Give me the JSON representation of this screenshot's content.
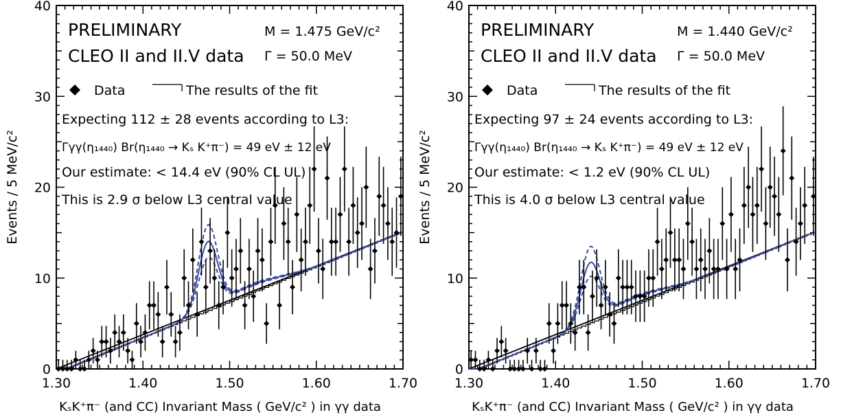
{
  "colors": {
    "data": "#000000",
    "fit": "#3a4a9c",
    "axis": "#000000",
    "background": "#ffffff"
  },
  "chart_data": [
    {
      "type": "scatter",
      "title": "",
      "xlabel": "KₛK⁺π⁻ (and CC) Invariant Mass ( GeV/c² ) in γγ data",
      "ylabel": "Events / 5 MeV/c²",
      "xlim": [
        1.3,
        1.7
      ],
      "ylim": [
        0,
        40
      ],
      "x_ticks": [
        "1.30",
        "1.40",
        "1.50",
        "1.60",
        "1.70"
      ],
      "y_ticks": [
        "0",
        "10",
        "20",
        "30",
        "40"
      ],
      "annotations": {
        "preliminary": "PRELIMINARY",
        "dataset": "CLEO II and II.V data",
        "mass": "M = 1.475 GeV/c²",
        "width": "Γ =  50.0 MeV",
        "legend_data": "Data",
        "legend_fit": "The results of the fit",
        "expecting": "Expecting 112 ± 28 events according to L3:",
        "width_relation": "Γγγ(η₁₄₄₀) Br(η₁₄₄₀ → Kₛ K⁺π⁻) = 49 eV ± 12 eV",
        "estimate": "Our estimate:  <  14.4 eV (90% CL UL)",
        "significance": "This is 2.9 σ below L3 central value"
      },
      "legend": [
        "Data",
        "The results of the fit"
      ],
      "fit": {
        "peak_mass": 1.475,
        "peak_height": 13.7,
        "peak_height_upper": 15.5,
        "peak_height_lower": 12.0
      },
      "series": [
        {
          "name": "Data",
          "x": [
            1.3025,
            1.3075,
            1.3125,
            1.3175,
            1.3225,
            1.3275,
            1.3325,
            1.3375,
            1.3425,
            1.3475,
            1.3525,
            1.3575,
            1.3625,
            1.3675,
            1.3725,
            1.3775,
            1.3825,
            1.3875,
            1.3925,
            1.3975,
            1.4025,
            1.4075,
            1.4125,
            1.4175,
            1.4225,
            1.4275,
            1.4325,
            1.4375,
            1.4425,
            1.4475,
            1.4525,
            1.4575,
            1.4625,
            1.4675,
            1.4725,
            1.4775,
            1.4825,
            1.4875,
            1.4925,
            1.4975,
            1.5025,
            1.5075,
            1.5125,
            1.5175,
            1.5225,
            1.5275,
            1.5325,
            1.5375,
            1.5425,
            1.5475,
            1.5525,
            1.5575,
            1.5625,
            1.5675,
            1.5725,
            1.5775,
            1.5825,
            1.5875,
            1.5925,
            1.5975,
            1.6025,
            1.6075,
            1.6125,
            1.6175,
            1.6225,
            1.6275,
            1.6325,
            1.6375,
            1.6425,
            1.6475,
            1.6525,
            1.6575,
            1.6625,
            1.6675,
            1.6725,
            1.6775,
            1.6825,
            1.6875,
            1.6925,
            1.6975
          ],
          "y": [
            0,
            0,
            0,
            0,
            1,
            0,
            0,
            1,
            2,
            1,
            3,
            3,
            2,
            4,
            3,
            4,
            2,
            1,
            5,
            3,
            4,
            7,
            7,
            6,
            3,
            9,
            6,
            3,
            4,
            10,
            7,
            12,
            6,
            14,
            9,
            13,
            10,
            7,
            9,
            15,
            10,
            11,
            13,
            7,
            11,
            8,
            13,
            12,
            5,
            14,
            18,
            7,
            16,
            14,
            9,
            17,
            12,
            14,
            18,
            22,
            13,
            11,
            21,
            14,
            14,
            17,
            22,
            14,
            18,
            15,
            16,
            20,
            11,
            13,
            19,
            18,
            16,
            14,
            15,
            19
          ]
        }
      ]
    },
    {
      "type": "scatter",
      "title": "",
      "xlabel": "KₛK⁺π⁻ (and CC) Invariant Mass ( GeV/c² ) in γγ data",
      "ylabel": "Events / 5 MeV/c²",
      "xlim": [
        1.3,
        1.7
      ],
      "ylim": [
        0,
        40
      ],
      "x_ticks": [
        "1.30",
        "1.40",
        "1.50",
        "1.60",
        "1.70"
      ],
      "y_ticks": [
        "0",
        "10",
        "20",
        "30",
        "40"
      ],
      "annotations": {
        "preliminary": "PRELIMINARY",
        "dataset": "CLEO II and II.V data",
        "mass": "M = 1.440 GeV/c²",
        "width": "Γ =  50.0 MeV",
        "legend_data": "Data",
        "legend_fit": "The results of the fit",
        "expecting": "Expecting  97 ± 24 events according to L3:",
        "width_relation": "Γγγ(η₁₄₄₀) Br(η₁₄₄₀ → Kₛ K⁺π⁻) = 49 eV ± 12 eV",
        "estimate": "Our estimate:  <   1.2 eV (90% CL UL)",
        "significance": "This is 4.0 σ below L3 central value"
      },
      "legend": [
        "Data",
        "The results of the fit"
      ],
      "fit": {
        "peak_mass": 1.44,
        "peak_height": 11.4,
        "peak_height_upper": 13.1,
        "peak_height_lower": 9.9
      },
      "series": [
        {
          "name": "Data",
          "x": [
            1.3025,
            1.3075,
            1.3125,
            1.3175,
            1.3225,
            1.3275,
            1.3325,
            1.3375,
            1.3425,
            1.3475,
            1.3525,
            1.3575,
            1.3625,
            1.3675,
            1.3725,
            1.3775,
            1.3825,
            1.3875,
            1.3925,
            1.3975,
            1.4025,
            1.4075,
            1.4125,
            1.4175,
            1.4225,
            1.4275,
            1.4325,
            1.4375,
            1.4425,
            1.4475,
            1.4525,
            1.4575,
            1.4625,
            1.4675,
            1.4725,
            1.4775,
            1.4825,
            1.4875,
            1.4925,
            1.4975,
            1.5025,
            1.5075,
            1.5125,
            1.5175,
            1.5225,
            1.5275,
            1.5325,
            1.5375,
            1.5425,
            1.5475,
            1.5525,
            1.5575,
            1.5625,
            1.5675,
            1.5725,
            1.5775,
            1.5825,
            1.5875,
            1.5925,
            1.5975,
            1.6025,
            1.6075,
            1.6125,
            1.6175,
            1.6225,
            1.6275,
            1.6325,
            1.6375,
            1.6425,
            1.6475,
            1.6525,
            1.6575,
            1.6625,
            1.6675,
            1.6725,
            1.6775,
            1.6825,
            1.6875,
            1.6975
          ],
          "y": [
            1,
            1,
            0,
            0,
            1,
            0,
            2,
            3,
            2,
            0,
            0,
            0,
            0,
            2,
            0,
            2,
            0,
            0,
            5,
            2,
            5,
            7,
            7,
            5,
            4,
            9,
            9,
            4,
            8,
            10,
            7,
            9,
            6,
            5,
            10,
            9,
            9,
            9,
            8,
            8,
            8,
            10,
            10,
            14,
            11,
            12,
            15,
            12,
            12,
            11,
            16,
            14,
            11,
            12,
            11,
            13,
            11,
            11,
            16,
            11,
            17,
            11,
            12,
            18,
            20,
            17,
            18,
            22,
            16,
            20,
            19,
            17,
            24,
            12,
            21,
            14,
            16,
            18,
            19
          ]
        }
      ]
    }
  ]
}
